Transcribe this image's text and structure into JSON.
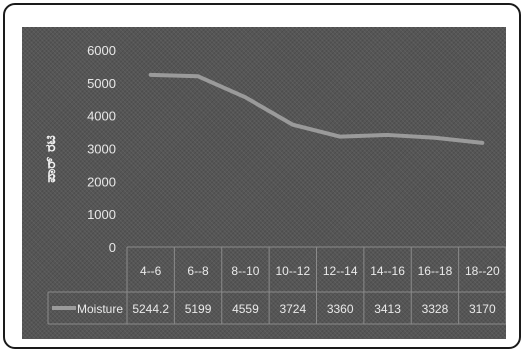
{
  "chart_data": {
    "type": "line",
    "title": "",
    "xlabel": "",
    "ylabel": "ಪಾರ್ ರಟಿ",
    "ylim": [
      0,
      6000
    ],
    "yticks": [
      "6000",
      "5000",
      "4000",
      "3000",
      "2000",
      "1000",
      "0"
    ],
    "categories": [
      "4--6",
      "6--8",
      "8--10",
      "10--12",
      "12--14",
      "14--16",
      "16--18",
      "18--20"
    ],
    "series": [
      {
        "name": "Moisture",
        "values": [
          5244.2,
          5199,
          4559,
          3724,
          3360,
          3413,
          3328,
          3170
        ],
        "value_labels": [
          "5244.2",
          "5199",
          "4559",
          "3724",
          "3360",
          "3413",
          "3328",
          "3170"
        ]
      }
    ],
    "grid": false,
    "legend": "data table",
    "colors": {
      "background": "#555555",
      "line": "#9a9a9a",
      "text": "#e8e8e8"
    }
  }
}
